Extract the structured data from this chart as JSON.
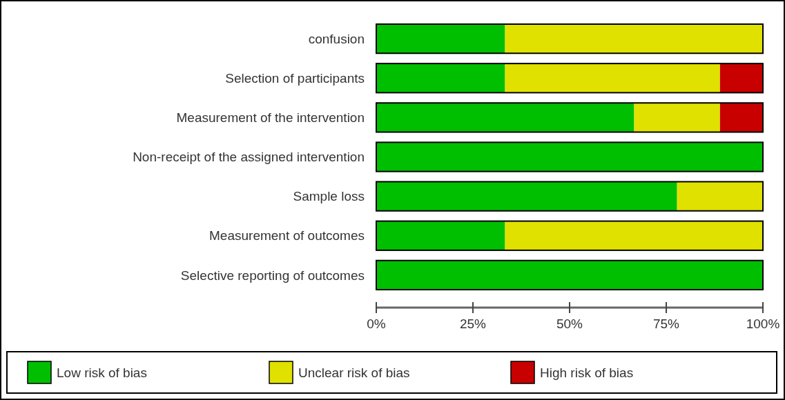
{
  "chart_data": {
    "type": "bar",
    "orientation": "horizontal",
    "stacked": true,
    "categories": [
      "confusion",
      "Selection of participants",
      "Measurement of the intervention",
      "Non-receipt of the assigned intervention",
      "Sample loss",
      "Measurement of outcomes",
      "Selective reporting of outcomes"
    ],
    "series": [
      {
        "name": "Low risk of bias",
        "color": "#00bf00",
        "values": [
          33.3,
          33.3,
          66.7,
          100,
          77.8,
          33.3,
          100
        ]
      },
      {
        "name": "Unclear risk of bias",
        "color": "#e1e100",
        "values": [
          66.7,
          55.6,
          22.2,
          0,
          22.2,
          66.7,
          0
        ]
      },
      {
        "name": "High risk of bias",
        "color": "#c80000",
        "values": [
          0,
          11.1,
          11.1,
          0,
          0,
          0,
          0
        ]
      }
    ],
    "xlim": [
      0,
      100
    ],
    "xticks": [
      {
        "value": 0,
        "label": "0%"
      },
      {
        "value": 25,
        "label": "25%"
      },
      {
        "value": 50,
        "label": "50%"
      },
      {
        "value": 75,
        "label": "75%"
      },
      {
        "value": 100,
        "label": "100%"
      }
    ],
    "legend": "bottom",
    "grid": false
  }
}
